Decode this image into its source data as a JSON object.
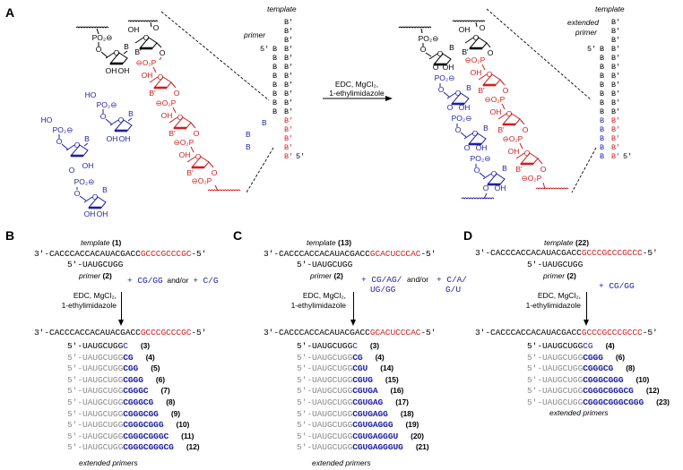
{
  "panel_labels": {
    "a": "A",
    "b": "B",
    "c": "C",
    "d": "D"
  },
  "colors": {
    "template_overhang": "#cc1f1f",
    "monomer": "#1f1fa0",
    "primer_faded": "#8a8a8a",
    "text": "#000000"
  },
  "panel_a": {
    "template_label": "template",
    "primer_label": "primer",
    "extended_primer_label_1": "extended",
    "extended_primer_label_2": "primer",
    "reagents_line1": "EDC, MgCl₂,",
    "reagents_line2": "1-ethylimidazole",
    "five_prime": "5'",
    "base_primer": "B",
    "base_template": "B'",
    "atoms": {
      "phosphate": "PO₂⊖",
      "phosphate_rev": "⊖O₂P",
      "hydroxyl": "OH",
      "hydroxyl_rev": "HO",
      "oxygen": "O",
      "base": "B",
      "base_template": "B'"
    }
  },
  "panel_b": {
    "template_caption": "template",
    "template_id": "(1)",
    "template_seq": {
      "prefix": "3'-CACCCACCACAUACGACC",
      "overhang": "GCCCGCCCGC",
      "suffix": "-5'"
    },
    "primer_seq": "5'-UAUGCUGG",
    "primer_caption": "primer",
    "primer_id": "(2)",
    "monomers_a": "+ CG/GG",
    "andor": "and/or",
    "monomers_b": "+ C/G",
    "reagents_line1": "EDC, MgCl₂,",
    "reagents_line2": "1-ethylimidazole",
    "products": [
      {
        "base": "5'-UAUGCUGG",
        "ext": "C",
        "id": "(3)"
      },
      {
        "base": "5'-UAUGCUGG",
        "ext": "CG",
        "id": "(4)"
      },
      {
        "base": "5'-UAUGCUGG",
        "ext": "CGG",
        "id": "(5)"
      },
      {
        "base": "5'-UAUGCUGG",
        "ext": "CGGG",
        "id": "(6)"
      },
      {
        "base": "5'-UAUGCUGG",
        "ext": "CGGGC",
        "id": "(7)"
      },
      {
        "base": "5'-UAUGCUGG",
        "ext": "CGGGCG",
        "id": "(8)"
      },
      {
        "base": "5'-UAUGCUGG",
        "ext": "CGGGCGG",
        "id": "(9)"
      },
      {
        "base": "5'-UAUGCUGG",
        "ext": "CGGGCGGG",
        "id": "(10)"
      },
      {
        "base": "5'-UAUGCUGG",
        "ext": "CGGGCGGGC",
        "id": "(11)"
      },
      {
        "base": "5'-UAUGCUGG",
        "ext": "CGGGCGGGCG",
        "id": "(12)"
      }
    ],
    "products_caption": "extended primers"
  },
  "panel_c": {
    "template_caption": "template",
    "template_id": "(13)",
    "template_seq": {
      "prefix": "3'-CACCCACCACAUACGACC",
      "overhang": "GCACUCCCAC",
      "suffix": "-5'"
    },
    "primer_seq": "5'-UAUGCUGG",
    "primer_caption": "primer",
    "primer_id": "(2)",
    "monomers_a_line1": "+ CG/AG/",
    "monomers_a_line2": "UG/GG",
    "andor": "and/or",
    "monomers_b_line1": "+ C/A/",
    "monomers_b_line2": "G/U",
    "reagents_line1": "EDC, MgCl₂,",
    "reagents_line2": "1-ethylimidazole",
    "products": [
      {
        "base": "5'-UAUGCUGG",
        "ext": "C",
        "id": "(3)"
      },
      {
        "base": "5'-UAUGCUGG",
        "ext": "CG",
        "id": "(4)"
      },
      {
        "base": "5'-UAUGCUGG",
        "ext": "CGU",
        "id": "(14)"
      },
      {
        "base": "5'-UAUGCUGG",
        "ext": "CGUG",
        "id": "(15)"
      },
      {
        "base": "5'-UAUGCUGG",
        "ext": "CGUGA",
        "id": "(16)"
      },
      {
        "base": "5'-UAUGCUGG",
        "ext": "CGUGAG",
        "id": "(17)"
      },
      {
        "base": "5'-UAUGCUGG",
        "ext": "CGUGAGG",
        "id": "(18)"
      },
      {
        "base": "5'-UAUGCUGG",
        "ext": "CGUGAGGG",
        "id": "(19)"
      },
      {
        "base": "5'-UAUGCUGG",
        "ext": "CGUGAGGGU",
        "id": "(20)"
      },
      {
        "base": "5'-UAUGCUGG",
        "ext": "CGUGAGGGUG",
        "id": "(21)"
      }
    ],
    "products_caption": "extended primers"
  },
  "panel_d": {
    "template_caption": "template",
    "template_id": "(22)",
    "template_seq": {
      "prefix": "3'-CACCCACCACAUACGACC",
      "overhang": "GCCCGCCCGCCC",
      "suffix": "-5'"
    },
    "primer_seq": "5'-UAUGCUGG",
    "primer_caption": "primer",
    "primer_id": "(2)",
    "monomers_a": "+ CG/GG",
    "reagents_line1": "EDC, MgCl₂,",
    "reagents_line2": "1-ethylimidazole",
    "products": [
      {
        "base": "5'-UAUGCUGG",
        "ext": "CG",
        "id": "(4)"
      },
      {
        "base": "5'-UAUGCUGG",
        "ext": "CGGG",
        "id": "(6)"
      },
      {
        "base": "5'-UAUGCUGG",
        "ext": "CGGGCG",
        "id": "(8)"
      },
      {
        "base": "5'-UAUGCUGG",
        "ext": "CGGGCGGG",
        "id": "(10)"
      },
      {
        "base": "5'-UAUGCUGG",
        "ext": "CGGGCGGGCG",
        "id": "(12)"
      },
      {
        "base": "5'-UAUGCUGG",
        "ext": "CGGGCGGGCGGG",
        "id": "(23)"
      }
    ],
    "products_caption": "extended primers"
  }
}
